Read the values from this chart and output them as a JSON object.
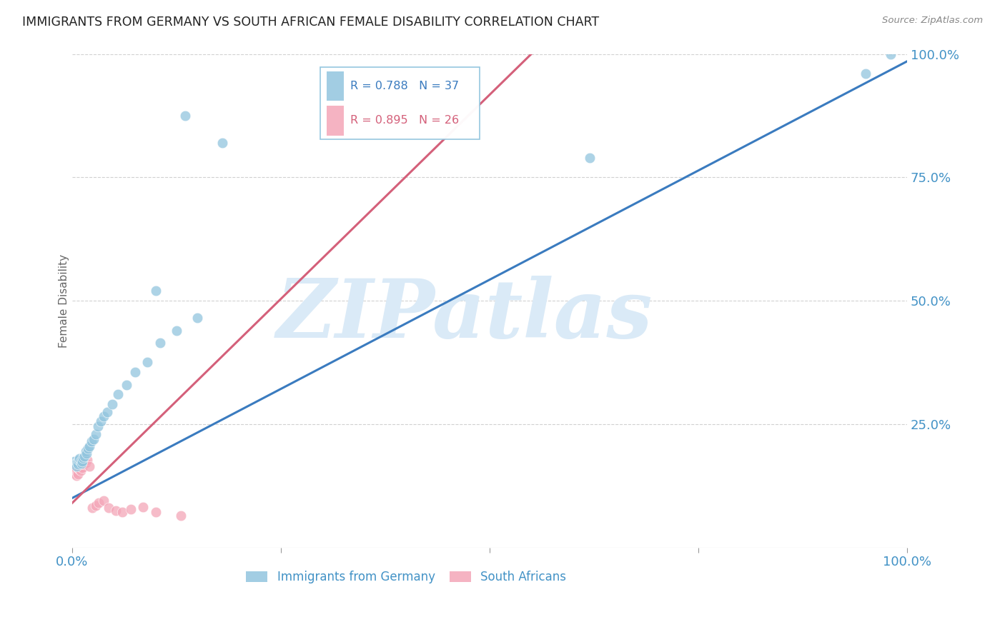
{
  "title": "IMMIGRANTS FROM GERMANY VS SOUTH AFRICAN FEMALE DISABILITY CORRELATION CHART",
  "source": "Source: ZipAtlas.com",
  "ylabel": "Female Disability",
  "xlim": [
    0,
    1
  ],
  "ylim": [
    0,
    1
  ],
  "xticks": [
    0.0,
    0.25,
    0.5,
    0.75,
    1.0
  ],
  "xticklabels": [
    "0.0%",
    "",
    "",
    "",
    "100.0%"
  ],
  "ytick_labels_right": [
    "100.0%",
    "75.0%",
    "50.0%",
    "25.0%",
    ""
  ],
  "ytick_positions_right": [
    1.0,
    0.75,
    0.5,
    0.25,
    0.0
  ],
  "legend_label1": "Immigrants from Germany",
  "legend_label2": "South Africans",
  "blue_color": "#92c5de",
  "pink_color": "#f4a6b8",
  "blue_line_color": "#3a7bbf",
  "pink_line_color": "#d4607a",
  "watermark_text": "ZIPatlas",
  "blue_scatter_x": [
    0.003,
    0.004,
    0.005,
    0.006,
    0.007,
    0.008,
    0.009,
    0.01,
    0.011,
    0.012,
    0.013,
    0.015,
    0.016,
    0.017,
    0.019,
    0.021,
    0.023,
    0.026,
    0.028,
    0.031,
    0.034,
    0.038,
    0.042,
    0.048,
    0.055,
    0.065,
    0.075,
    0.09,
    0.105,
    0.125,
    0.15,
    0.18,
    0.1,
    0.62,
    0.95,
    0.98,
    0.135
  ],
  "blue_scatter_y": [
    0.175,
    0.17,
    0.165,
    0.172,
    0.168,
    0.178,
    0.18,
    0.175,
    0.17,
    0.175,
    0.182,
    0.185,
    0.195,
    0.19,
    0.2,
    0.205,
    0.215,
    0.22,
    0.23,
    0.245,
    0.255,
    0.265,
    0.275,
    0.29,
    0.31,
    0.33,
    0.355,
    0.375,
    0.415,
    0.44,
    0.465,
    0.82,
    0.52,
    0.79,
    0.96,
    1.0,
    0.875
  ],
  "pink_scatter_x": [
    0.001,
    0.002,
    0.003,
    0.004,
    0.005,
    0.006,
    0.007,
    0.008,
    0.009,
    0.01,
    0.012,
    0.014,
    0.016,
    0.018,
    0.021,
    0.024,
    0.028,
    0.032,
    0.038,
    0.044,
    0.052,
    0.06,
    0.07,
    0.085,
    0.1,
    0.13
  ],
  "pink_scatter_y": [
    0.155,
    0.158,
    0.15,
    0.155,
    0.145,
    0.152,
    0.148,
    0.16,
    0.158,
    0.155,
    0.162,
    0.168,
    0.172,
    0.178,
    0.165,
    0.08,
    0.085,
    0.09,
    0.095,
    0.08,
    0.075,
    0.072,
    0.078,
    0.082,
    0.072,
    0.065
  ],
  "blue_line_x": [
    0.0,
    1.0
  ],
  "blue_line_y": [
    0.1,
    0.985
  ],
  "pink_line_x": [
    0.0,
    0.55
  ],
  "pink_line_y": [
    0.09,
    1.0
  ],
  "background_color": "#ffffff",
  "grid_color": "#cccccc",
  "title_color": "#222222",
  "axis_label_color": "#4292c6",
  "watermark_color": "#daeaf7"
}
